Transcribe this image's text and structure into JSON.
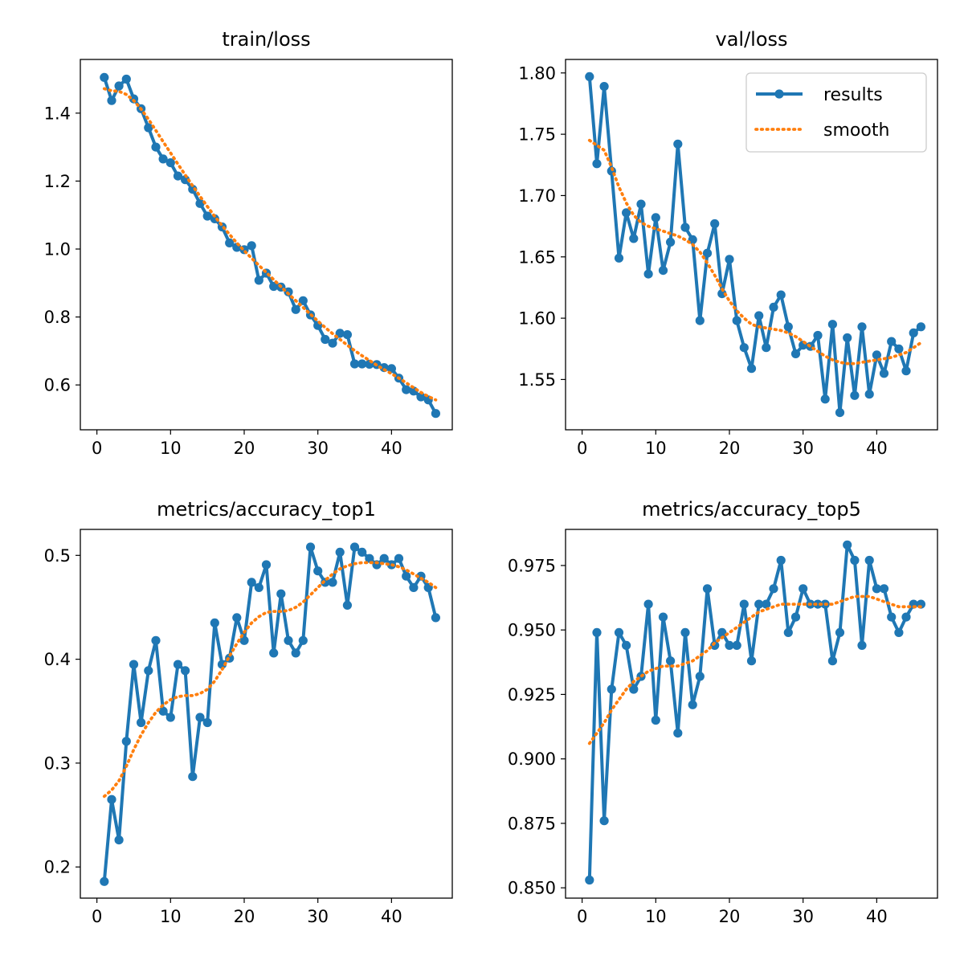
{
  "colors": {
    "results": "#1f77b4",
    "smooth": "#ff7f0e",
    "axes": "#000000",
    "background": "#ffffff"
  },
  "legend": {
    "items": [
      "results",
      "smooth"
    ],
    "location": "upper-right",
    "panel": 1
  },
  "chart_data": [
    {
      "type": "line",
      "title": "train/loss",
      "xlabel": "",
      "ylabel": "",
      "xlim": [
        -2.25,
        48.25
      ],
      "ylim": [
        0.468,
        1.558
      ],
      "xticks": [
        0,
        10,
        20,
        30,
        40
      ],
      "yticks": [
        0.6,
        0.8,
        1.0,
        1.2,
        1.4
      ],
      "ytick_labels": [
        "0.6",
        "0.8",
        "1.0",
        "1.2",
        "1.4"
      ],
      "grid": false,
      "x": [
        1,
        2,
        3,
        4,
        5,
        6,
        7,
        8,
        9,
        10,
        11,
        12,
        13,
        14,
        15,
        16,
        17,
        18,
        19,
        20,
        21,
        22,
        23,
        24,
        25,
        26,
        27,
        28,
        29,
        30,
        31,
        32,
        33,
        34,
        35,
        36,
        37,
        38,
        39,
        40,
        41,
        42,
        43,
        44,
        45,
        46
      ],
      "series": [
        {
          "name": "results",
          "style": "solid-markers",
          "values": [
            1.505,
            1.437,
            1.48,
            1.5,
            1.442,
            1.413,
            1.357,
            1.3,
            1.265,
            1.254,
            1.215,
            1.204,
            1.176,
            1.134,
            1.097,
            1.089,
            1.065,
            1.018,
            1.005,
            0.998,
            1.01,
            0.908,
            0.929,
            0.89,
            0.888,
            0.874,
            0.822,
            0.848,
            0.806,
            0.775,
            0.734,
            0.723,
            0.752,
            0.748,
            0.662,
            0.662,
            0.661,
            0.66,
            0.651,
            0.648,
            0.62,
            0.586,
            0.582,
            0.565,
            0.556,
            0.516
          ]
        },
        {
          "name": "smooth",
          "style": "dotted",
          "values": [
            1.472,
            1.466,
            1.464,
            1.455,
            1.437,
            1.412,
            1.382,
            1.349,
            1.316,
            1.283,
            1.25,
            1.218,
            1.186,
            1.155,
            1.125,
            1.096,
            1.069,
            1.043,
            1.018,
            0.995,
            0.973,
            0.952,
            0.931,
            0.91,
            0.889,
            0.868,
            0.848,
            0.828,
            0.808,
            0.788,
            0.769,
            0.751,
            0.734,
            0.717,
            0.701,
            0.686,
            0.672,
            0.658,
            0.645,
            0.633,
            0.62,
            0.606,
            0.592,
            0.578,
            0.566,
            0.556
          ]
        }
      ]
    },
    {
      "type": "line",
      "title": "val/loss",
      "xlabel": "",
      "ylabel": "",
      "xlim": [
        -2.25,
        48.25
      ],
      "ylim": [
        1.509,
        1.811
      ],
      "xticks": [
        0,
        10,
        20,
        30,
        40
      ],
      "yticks": [
        1.55,
        1.6,
        1.65,
        1.7,
        1.75,
        1.8
      ],
      "ytick_labels": [
        "1.55",
        "1.60",
        "1.65",
        "1.70",
        "1.75",
        "1.80"
      ],
      "grid": false,
      "x": [
        1,
        2,
        3,
        4,
        5,
        6,
        7,
        8,
        9,
        10,
        11,
        12,
        13,
        14,
        15,
        16,
        17,
        18,
        19,
        20,
        21,
        22,
        23,
        24,
        25,
        26,
        27,
        28,
        29,
        30,
        31,
        32,
        33,
        34,
        35,
        36,
        37,
        38,
        39,
        40,
        41,
        42,
        43,
        44,
        45,
        46
      ],
      "series": [
        {
          "name": "results",
          "style": "solid-markers",
          "values": [
            1.797,
            1.726,
            1.789,
            1.72,
            1.649,
            1.686,
            1.665,
            1.693,
            1.636,
            1.682,
            1.639,
            1.662,
            1.742,
            1.674,
            1.664,
            1.598,
            1.653,
            1.677,
            1.62,
            1.648,
            1.598,
            1.576,
            1.559,
            1.602,
            1.576,
            1.609,
            1.619,
            1.593,
            1.571,
            1.578,
            1.577,
            1.586,
            1.534,
            1.595,
            1.523,
            1.584,
            1.537,
            1.593,
            1.538,
            1.57,
            1.555,
            1.581,
            1.575,
            1.557,
            1.588,
            1.593
          ]
        },
        {
          "name": "smooth",
          "style": "dotted",
          "values": [
            1.745,
            1.741,
            1.737,
            1.723,
            1.707,
            1.694,
            1.684,
            1.678,
            1.675,
            1.673,
            1.671,
            1.669,
            1.667,
            1.664,
            1.66,
            1.654,
            1.645,
            1.635,
            1.624,
            1.614,
            1.606,
            1.6,
            1.595,
            1.593,
            1.592,
            1.591,
            1.59,
            1.588,
            1.585,
            1.581,
            1.577,
            1.573,
            1.569,
            1.566,
            1.564,
            1.563,
            1.563,
            1.564,
            1.565,
            1.566,
            1.567,
            1.568,
            1.57,
            1.572,
            1.576,
            1.58
          ]
        }
      ]
    },
    {
      "type": "line",
      "title": "metrics/accuracy_top1",
      "xlabel": "",
      "ylabel": "",
      "xlim": [
        -2.25,
        48.25
      ],
      "ylim": [
        0.17,
        0.525
      ],
      "xticks": [
        0,
        10,
        20,
        30,
        40
      ],
      "yticks": [
        0.2,
        0.3,
        0.4,
        0.5
      ],
      "ytick_labels": [
        "0.2",
        "0.3",
        "0.4",
        "0.5"
      ],
      "grid": false,
      "x": [
        1,
        2,
        3,
        4,
        5,
        6,
        7,
        8,
        9,
        10,
        11,
        12,
        13,
        14,
        15,
        16,
        17,
        18,
        19,
        20,
        21,
        22,
        23,
        24,
        25,
        26,
        27,
        28,
        29,
        30,
        31,
        32,
        33,
        34,
        35,
        36,
        37,
        38,
        39,
        40,
        41,
        42,
        43,
        44,
        45,
        46
      ],
      "series": [
        {
          "name": "results",
          "style": "solid-markers",
          "values": [
            0.186,
            0.265,
            0.226,
            0.321,
            0.395,
            0.339,
            0.389,
            0.418,
            0.35,
            0.344,
            0.395,
            0.389,
            0.287,
            0.344,
            0.339,
            0.435,
            0.395,
            0.401,
            0.44,
            0.418,
            0.474,
            0.469,
            0.491,
            0.406,
            0.463,
            0.418,
            0.406,
            0.418,
            0.508,
            0.485,
            0.474,
            0.474,
            0.503,
            0.452,
            0.508,
            0.503,
            0.497,
            0.491,
            0.497,
            0.491,
            0.497,
            0.48,
            0.469,
            0.48,
            0.469,
            0.44
          ]
        },
        {
          "name": "smooth",
          "style": "dotted",
          "values": [
            0.268,
            0.274,
            0.283,
            0.297,
            0.313,
            0.327,
            0.339,
            0.349,
            0.356,
            0.361,
            0.364,
            0.365,
            0.365,
            0.367,
            0.371,
            0.379,
            0.39,
            0.403,
            0.415,
            0.426,
            0.435,
            0.441,
            0.445,
            0.446,
            0.446,
            0.447,
            0.45,
            0.455,
            0.462,
            0.469,
            0.476,
            0.482,
            0.487,
            0.49,
            0.492,
            0.493,
            0.493,
            0.493,
            0.492,
            0.491,
            0.489,
            0.486,
            0.482,
            0.478,
            0.474,
            0.469
          ]
        }
      ]
    },
    {
      "type": "line",
      "title": "metrics/accuracy_top5",
      "xlabel": "",
      "ylabel": "",
      "xlim": [
        -2.25,
        48.25
      ],
      "ylim": [
        0.846,
        0.989
      ],
      "xticks": [
        0,
        10,
        20,
        30,
        40
      ],
      "yticks": [
        0.85,
        0.875,
        0.9,
        0.925,
        0.95,
        0.975
      ],
      "ytick_labels": [
        "0.850",
        "0.875",
        "0.900",
        "0.925",
        "0.950",
        "0.975"
      ],
      "grid": false,
      "x": [
        1,
        2,
        3,
        4,
        5,
        6,
        7,
        8,
        9,
        10,
        11,
        12,
        13,
        14,
        15,
        16,
        17,
        18,
        19,
        20,
        21,
        22,
        23,
        24,
        25,
        26,
        27,
        28,
        29,
        30,
        31,
        32,
        33,
        34,
        35,
        36,
        37,
        38,
        39,
        40,
        41,
        42,
        43,
        44,
        45,
        46
      ],
      "series": [
        {
          "name": "results",
          "style": "solid-markers",
          "values": [
            0.853,
            0.949,
            0.876,
            0.927,
            0.949,
            0.944,
            0.927,
            0.932,
            0.96,
            0.915,
            0.955,
            0.938,
            0.91,
            0.949,
            0.921,
            0.932,
            0.966,
            0.944,
            0.949,
            0.944,
            0.944,
            0.96,
            0.938,
            0.96,
            0.96,
            0.966,
            0.977,
            0.949,
            0.955,
            0.966,
            0.96,
            0.96,
            0.96,
            0.938,
            0.949,
            0.983,
            0.977,
            0.944,
            0.977,
            0.966,
            0.966,
            0.955,
            0.949,
            0.955,
            0.96,
            0.96
          ]
        },
        {
          "name": "smooth",
          "style": "dotted",
          "values": [
            0.906,
            0.91,
            0.914,
            0.919,
            0.923,
            0.927,
            0.93,
            0.932,
            0.934,
            0.935,
            0.936,
            0.936,
            0.936,
            0.937,
            0.938,
            0.94,
            0.942,
            0.945,
            0.947,
            0.949,
            0.951,
            0.953,
            0.955,
            0.957,
            0.958,
            0.959,
            0.96,
            0.96,
            0.96,
            0.96,
            0.96,
            0.96,
            0.96,
            0.96,
            0.961,
            0.962,
            0.963,
            0.963,
            0.963,
            0.962,
            0.961,
            0.96,
            0.959,
            0.959,
            0.959,
            0.959
          ]
        }
      ]
    }
  ]
}
